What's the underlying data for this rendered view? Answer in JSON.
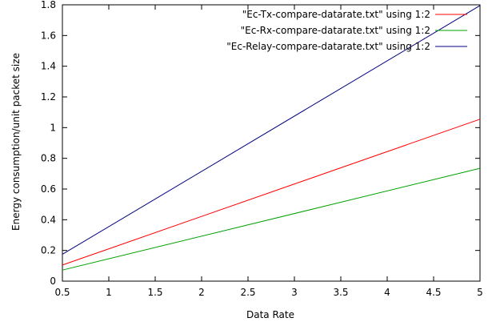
{
  "chart_data": {
    "type": "line",
    "title": "",
    "xlabel": "Data Rate",
    "ylabel": "Energy consumption/unit packet size",
    "xlim": [
      0.5,
      5
    ],
    "ylim": [
      0,
      1.8
    ],
    "x_ticks": [
      "0.5",
      "1",
      "1.5",
      "2",
      "2.5",
      "3",
      "3.5",
      "4",
      "4.5",
      "5"
    ],
    "y_ticks": [
      "0",
      "0.2",
      "0.4",
      "0.6",
      "0.8",
      "1",
      "1.2",
      "1.4",
      "1.6",
      "1.8"
    ],
    "grid": false,
    "legend_position": "top-right",
    "series": [
      {
        "name": "\"Ec-Tx-compare-datarate.txt\" using 1:2",
        "color": "#ff0000",
        "x": [
          0.5,
          5
        ],
        "y": [
          0.105,
          1.055
        ]
      },
      {
        "name": "\"Ec-Rx-compare-datarate.txt\" using 1:2",
        "color": "#00a000",
        "x": [
          0.5,
          5
        ],
        "y": [
          0.072,
          0.735
        ]
      },
      {
        "name": "\"Ec-Relay-compare-datarate.txt\" using 1:2",
        "color": "#000080",
        "x": [
          0.5,
          5
        ],
        "y": [
          0.175,
          1.795
        ]
      }
    ]
  }
}
